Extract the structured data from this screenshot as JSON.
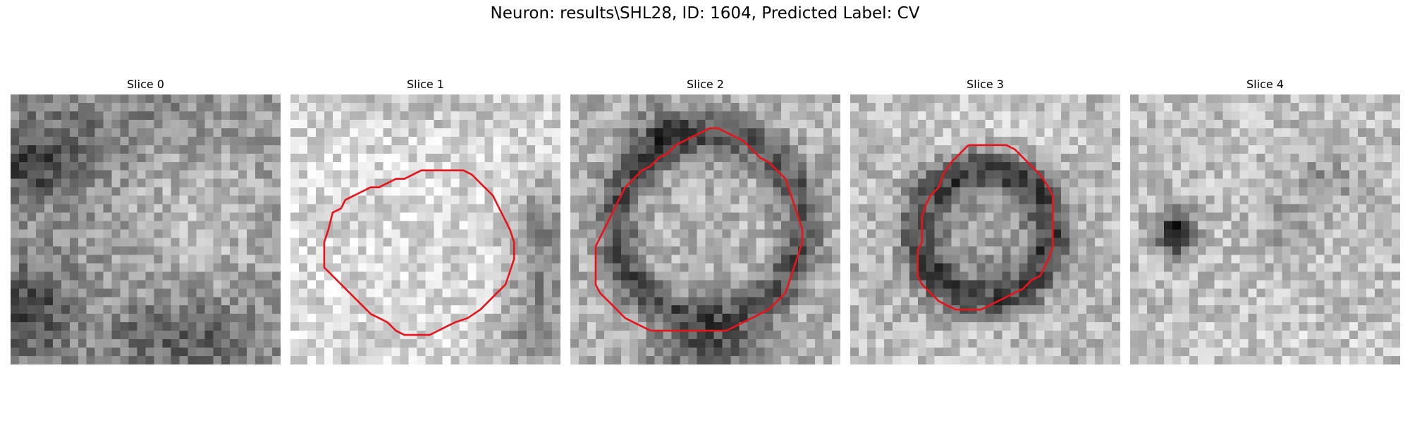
{
  "figure": {
    "title": "Neuron: results\\SHL28, ID: 1604, Predicted Label: CV"
  },
  "panels": [
    {
      "title": "Slice 0",
      "image": "grayscale-em-patch",
      "contour": false
    },
    {
      "title": "Slice 1",
      "image": "grayscale-em-patch",
      "contour": true
    },
    {
      "title": "Slice 2",
      "image": "grayscale-em-patch",
      "contour": true
    },
    {
      "title": "Slice 3",
      "image": "grayscale-em-patch",
      "contour": true
    },
    {
      "title": "Slice 4",
      "image": "grayscale-em-patch",
      "contour": false
    }
  ],
  "style": {
    "contour_color": "#e8141a"
  }
}
